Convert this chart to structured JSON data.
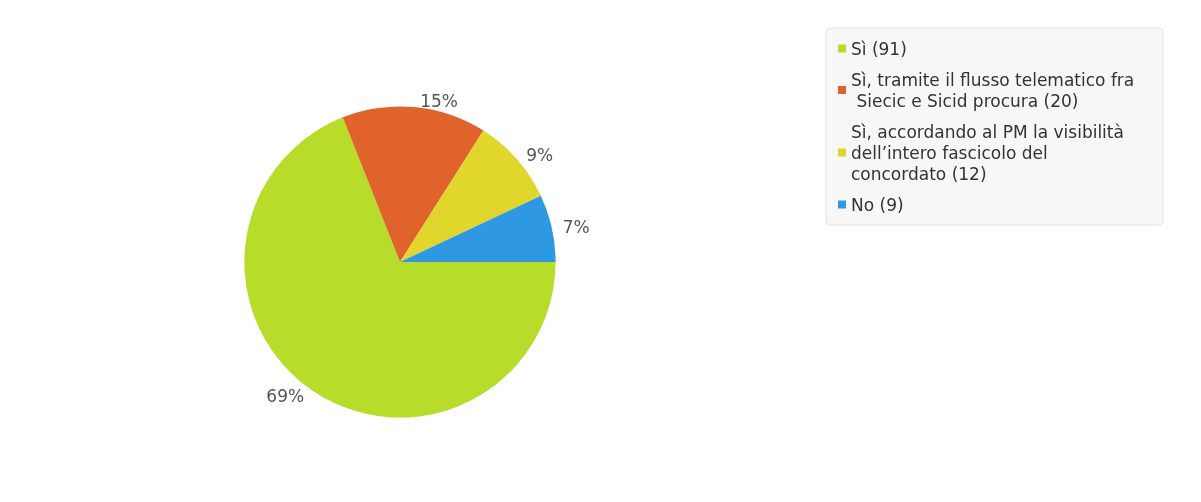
{
  "chart_data": {
    "type": "pie",
    "categories": [
      "Sì (91)",
      "Sì, tramite il flusso telematico fra Siecic e Sicid procura (20)",
      "Sì, accordando al PM la visibilità dell’intero fascicolo del concordato (12)",
      "No (9)"
    ],
    "values": [
      69,
      15,
      9,
      7
    ],
    "colors": [
      "#b7dc2a",
      "#e0632c",
      "#e0d62c",
      "#2f98e2"
    ],
    "value_labels": [
      "69%",
      "15%",
      "9%",
      "7%"
    ],
    "legend": "top right"
  }
}
